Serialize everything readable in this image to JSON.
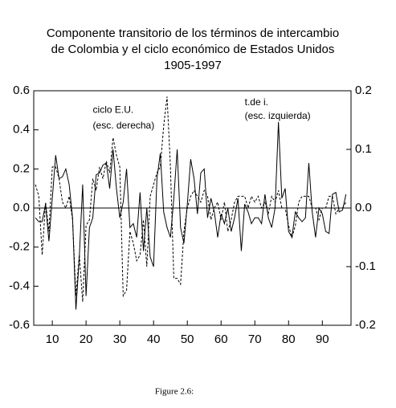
{
  "chart_data": {
    "type": "line",
    "title": [
      "Componente transitorio de los términos de intercambio",
      "de Colombia y el ciclo económico de Estados Unidos",
      "1905-1997"
    ],
    "caption": "Figure 2.6:",
    "annotations": [
      {
        "text": "ciclo E.U.",
        "x": 1922,
        "y": 0.5
      },
      {
        "text": "(esc. derecha)",
        "x": 1922,
        "y": 0.42
      },
      {
        "text": "t.de i.",
        "x": 1967,
        "y": 0.54
      },
      {
        "text": "(esc. izquierda)",
        "x": 1967,
        "y": 0.47
      }
    ],
    "x": [
      1905,
      1906,
      1907,
      1908,
      1909,
      1910,
      1911,
      1912,
      1913,
      1914,
      1915,
      1916,
      1917,
      1918,
      1919,
      1920,
      1921,
      1922,
      1923,
      1924,
      1925,
      1926,
      1927,
      1928,
      1929,
      1930,
      1931,
      1932,
      1933,
      1934,
      1935,
      1936,
      1937,
      1938,
      1939,
      1940,
      1941,
      1942,
      1943,
      1944,
      1945,
      1946,
      1947,
      1948,
      1949,
      1950,
      1951,
      1952,
      1953,
      1954,
      1955,
      1956,
      1957,
      1958,
      1959,
      1960,
      1961,
      1962,
      1963,
      1964,
      1965,
      1966,
      1967,
      1968,
      1969,
      1970,
      1971,
      1972,
      1973,
      1974,
      1975,
      1976,
      1977,
      1978,
      1979,
      1980,
      1981,
      1982,
      1983,
      1984,
      1985,
      1986,
      1987,
      1988,
      1989,
      1990,
      1991,
      1992,
      1993,
      1994,
      1995,
      1996,
      1997
    ],
    "series": [
      {
        "name": "t.de i.",
        "color": "#000000",
        "dash": false,
        "axis": "y",
        "values": [
          -0.05,
          -0.07,
          -0.07,
          0.02,
          -0.17,
          0.05,
          0.27,
          0.15,
          0.16,
          0.2,
          0.12,
          -0.05,
          -0.52,
          -0.25,
          0.12,
          -0.45,
          -0.1,
          -0.05,
          0.17,
          0.18,
          0.22,
          0.23,
          0.1,
          0.3,
          0.1,
          -0.05,
          0.03,
          0.2,
          -0.1,
          -0.08,
          -0.15,
          0.08,
          -0.22,
          0.0,
          -0.25,
          -0.3,
          0.15,
          0.28,
          -0.02,
          -0.1,
          -0.15,
          0.05,
          0.3,
          -0.1,
          -0.18,
          0.02,
          0.25,
          0.15,
          -0.03,
          0.18,
          0.2,
          -0.05,
          0.05,
          -0.02,
          -0.15,
          -0.03,
          -0.08,
          0.0,
          -0.12,
          -0.05,
          0.05,
          -0.22,
          0.02,
          -0.02,
          -0.08,
          -0.05,
          -0.05,
          -0.08,
          0.07,
          -0.05,
          -0.1,
          0.0,
          0.44,
          0.05,
          0.1,
          -0.12,
          -0.15,
          -0.02,
          -0.05,
          -0.07,
          -0.05,
          0.23,
          -0.02,
          -0.15,
          0.0,
          -0.03,
          -0.12,
          -0.13,
          0.07,
          0.08,
          -0.02,
          -0.01,
          0.07
        ]
      },
      {
        "name": "ciclo E.U.",
        "color": "#000000",
        "dash": true,
        "axis": "y2",
        "values": [
          0.04,
          0.02,
          -0.08,
          0.01,
          -0.04,
          0.07,
          0.07,
          0.05,
          0.01,
          0.0,
          0.02,
          -0.02,
          -0.15,
          -0.08,
          -0.16,
          -0.03,
          -0.02,
          0.05,
          0.03,
          0.07,
          0.05,
          0.08,
          0.06,
          0.12,
          0.09,
          0.07,
          -0.15,
          -0.14,
          -0.04,
          -0.06,
          -0.09,
          -0.08,
          -0.02,
          -0.1,
          0.02,
          0.04,
          0.06,
          0.07,
          0.14,
          0.19,
          0.07,
          -0.12,
          -0.12,
          -0.13,
          -0.04,
          0.0,
          0.02,
          0.03,
          0.02,
          0.01,
          0.03,
          0.02,
          -0.02,
          0.0,
          0.01,
          -0.02,
          0.01,
          -0.04,
          -0.02,
          0.01,
          0.02,
          0.02,
          0.02,
          0.0,
          0.02,
          0.01,
          0.02,
          0.0,
          0.01,
          -0.01,
          0.02,
          0.01,
          0.03,
          0.0,
          0.0,
          -0.03,
          -0.05,
          -0.03,
          0.01,
          0.02,
          0.02,
          0.02,
          0.0,
          0.0,
          -0.02,
          0.0,
          0.0,
          0.02,
          0.02,
          -0.01,
          0.0,
          0.0,
          0.01
        ]
      }
    ],
    "xlim": [
      1904.5,
      1998.5
    ],
    "xticks": [
      {
        "value": 1910,
        "label": "10"
      },
      {
        "value": 1920,
        "label": "20"
      },
      {
        "value": 1930,
        "label": "30"
      },
      {
        "value": 1940,
        "label": "40"
      },
      {
        "value": 1950,
        "label": "50"
      },
      {
        "value": 1960,
        "label": "60"
      },
      {
        "value": 1970,
        "label": "70"
      },
      {
        "value": 1980,
        "label": "80"
      },
      {
        "value": 1990,
        "label": "90"
      }
    ],
    "ylim": [
      -0.6,
      0.6
    ],
    "yticks": [
      0.6,
      0.4,
      0.2,
      {
        "value": 0,
        "label": "0.0"
      },
      -0.2,
      -0.4,
      -0.6
    ],
    "y2lim": [
      -0.2,
      0.2
    ],
    "y2ticks": [
      0.2,
      0.1,
      {
        "value": 0,
        "label": "0.0"
      },
      -0.1,
      -0.2
    ],
    "zero_line": true
  }
}
